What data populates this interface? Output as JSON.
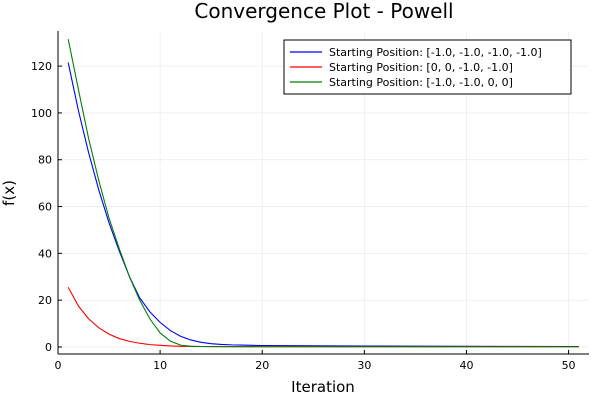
{
  "chart_data": {
    "type": "line",
    "title": "Convergence Plot - Powell",
    "xlabel": "Iteration",
    "ylabel": "f(x)",
    "xlim": [
      0,
      52
    ],
    "ylim": [
      -3,
      135
    ],
    "xticks": [
      0,
      10,
      20,
      30,
      40,
      50
    ],
    "yticks": [
      0,
      20,
      40,
      60,
      80,
      100,
      120
    ],
    "grid": true,
    "legend_position": "top-right",
    "series": [
      {
        "name": "Starting Position: [-1.0, -1.0, -1.0, -1.0]",
        "color": "#0000ff",
        "x": [
          1,
          2,
          3,
          4,
          5,
          6,
          7,
          8,
          9,
          10,
          11,
          12,
          13,
          14,
          15,
          16,
          17,
          18,
          19,
          20,
          25,
          30,
          35,
          40,
          45,
          50,
          51
        ],
        "y": [
          121.5,
          101,
          83,
          67,
          53,
          41,
          30,
          21,
          15,
          10.5,
          7,
          4.6,
          3,
          2,
          1.4,
          1.1,
          0.9,
          0.8,
          0.7,
          0.6,
          0.5,
          0.4,
          0.35,
          0.3,
          0.25,
          0.2,
          0.2
        ]
      },
      {
        "name": "Starting Position: [0, 0, -1.0, -1.0]",
        "color": "#ff0000",
        "x": [
          1,
          2,
          3,
          4,
          5,
          6,
          7,
          8,
          9,
          10,
          11,
          12,
          13,
          14,
          15,
          20,
          25,
          30,
          35,
          40,
          45,
          50,
          51
        ],
        "y": [
          25.5,
          17.5,
          12,
          8.2,
          5.5,
          3.6,
          2.4,
          1.6,
          1.0,
          0.7,
          0.45,
          0.3,
          0.25,
          0.2,
          0.15,
          0.1,
          0.1,
          0.1,
          0.1,
          0.1,
          0.1,
          0.1,
          0.1
        ]
      },
      {
        "name": "Starting Position: [-1.0, -1.0, 0, 0]",
        "color": "#008000",
        "x": [
          1,
          2,
          3,
          4,
          5,
          6,
          7,
          8,
          9,
          10,
          11,
          12,
          13,
          14,
          15,
          20,
          25,
          30,
          35,
          40,
          45,
          50,
          51
        ],
        "y": [
          131.5,
          110,
          89,
          71,
          55,
          42,
          30,
          20,
          12,
          6,
          2.5,
          0.8,
          0.3,
          0.2,
          0.15,
          0.1,
          0.1,
          0.1,
          0.1,
          0.1,
          0.1,
          0.1,
          0.1
        ]
      }
    ]
  }
}
